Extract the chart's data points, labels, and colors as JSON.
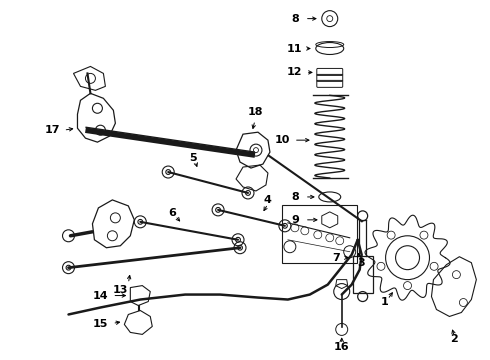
{
  "bg_color": "#ffffff",
  "line_color": "#1a1a1a",
  "label_color": "#000000",
  "fig_width": 4.9,
  "fig_height": 3.6,
  "dpi": 100,
  "xlim": [
    0,
    490
  ],
  "ylim": [
    0,
    360
  ]
}
